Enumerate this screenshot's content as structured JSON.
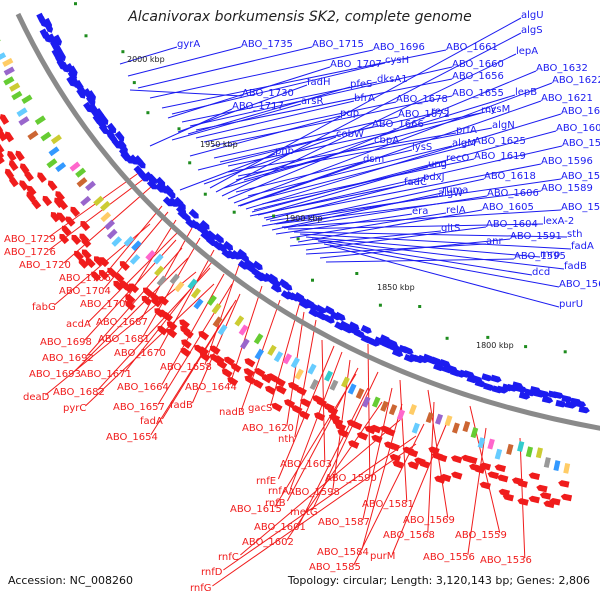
{
  "title": "Alcanivorax borkumensis SK2, complete genome",
  "footer": {
    "accession": "Accession: NC_008260",
    "summary": "Topology: circular; Length: 3,120,143 bp; Genes: 2,806"
  },
  "colors": {
    "forward_strand": "#1c1cf0",
    "reverse_strand": "#f01c1c",
    "backbone": "#8a8a8a",
    "tick": "#1e8c1e"
  },
  "ticks": [
    "2000 kbp",
    "1950 kbp",
    "1900 kbp",
    "1850 kbp",
    "1800 kbp"
  ],
  "forward_labels": [
    "algU",
    "algS",
    "lepA",
    "ABO_1632",
    "ABO_1622",
    "ABO_1621",
    "ABO_1608",
    "ABO_1607",
    "ABO_1597",
    "ABO_1596",
    "ABO_1593",
    "ABO_1589",
    "ABO_1588",
    "lexA-2",
    "sth",
    "fadA",
    "mrp",
    "fadB",
    "dcd",
    "ABO_1560",
    "purU",
    "gyrA",
    "ABO_1735",
    "ABO_1715",
    "ABO_1696",
    "ABO_1661",
    "cysH",
    "ABO_1707",
    "dksA1",
    "ABO_1660",
    "ABO_1656",
    "fadH",
    "pfeS",
    "ABO_1730",
    "arsR",
    "bfrA",
    "ABO_1678",
    "ABO_1655",
    "ABO_1717",
    "pgp",
    "ABO_1672",
    "recJ",
    "rnc",
    "ABO_1666",
    "prfA",
    "algN",
    "cysM",
    "cobW",
    "cbpA",
    "lysS",
    "algM",
    "ABO_1625",
    "ABO_1619",
    "pnb",
    "dsm",
    "ung",
    "recO",
    "fadC",
    "pdxJ",
    "ABO_1618",
    "ABO_1606",
    "algW",
    "ruma",
    "era",
    "relA",
    "ABO_1605",
    "gltS",
    "ABO_1604",
    "anr",
    "ABO_1591",
    "ABO_1595",
    "lepB"
  ],
  "reverse_labels": [
    "ABO_1729",
    "ABO_1726",
    "ABO_1720",
    "ABO_1706",
    "ABO_1704",
    "fabG",
    "ABO_1700",
    "acdA",
    "ABO_1687",
    "ABO_1698",
    "ABO_1681",
    "ABO_1692",
    "ABO_1670",
    "ABO_1693",
    "ABO_1671",
    "ABO_1658",
    "deaD",
    "ABO_1682",
    "ABO_1664",
    "pyrC",
    "ABO_1657",
    "ABO_1644",
    "fadB",
    "fadA",
    "ABO_1654",
    "nadB",
    "gacS",
    "ABO_1620",
    "nth",
    "ABO_1603",
    "rnfE",
    "rnfA",
    "ABO_1590",
    "ABO_1598",
    "rnfB",
    "ABO_1615",
    "metG",
    "ABO_1581",
    "ABO_1601",
    "ABO_1587",
    "ABO_1569",
    "ABO_1602",
    "ABO_1584",
    "ABO_1568",
    "ABO_1559",
    "rnfC",
    "ABO_1585",
    "purM",
    "ABO_1556",
    "ABO_1536",
    "rnfD",
    "rnfG"
  ]
}
